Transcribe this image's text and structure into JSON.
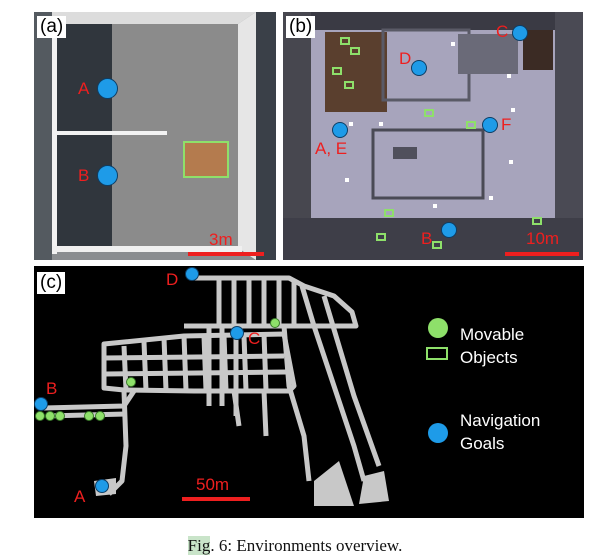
{
  "panels": {
    "a": {
      "label": "(a)",
      "scale": "3m",
      "goals": [
        "A",
        "B"
      ]
    },
    "b": {
      "label": "(b)",
      "scale": "10m",
      "goals": {
        "c": "C",
        "d": "D",
        "ae": "A, E",
        "f": "F",
        "b": "B"
      }
    },
    "c": {
      "label": "(c)",
      "scale": "50m",
      "goals": {
        "d": "D",
        "c": "C",
        "b": "B",
        "a": "A"
      }
    }
  },
  "legend": {
    "movable_line1": "Movable",
    "movable_line2": "Objects",
    "nav_line1": "Navigation",
    "nav_line2": "Goals"
  },
  "caption": {
    "fig": "Fig",
    "rest": ". 6: Environments overview."
  },
  "colors": {
    "goal": "#1e9be8",
    "label": "#ee1f1f",
    "object": "#8ee06a"
  }
}
